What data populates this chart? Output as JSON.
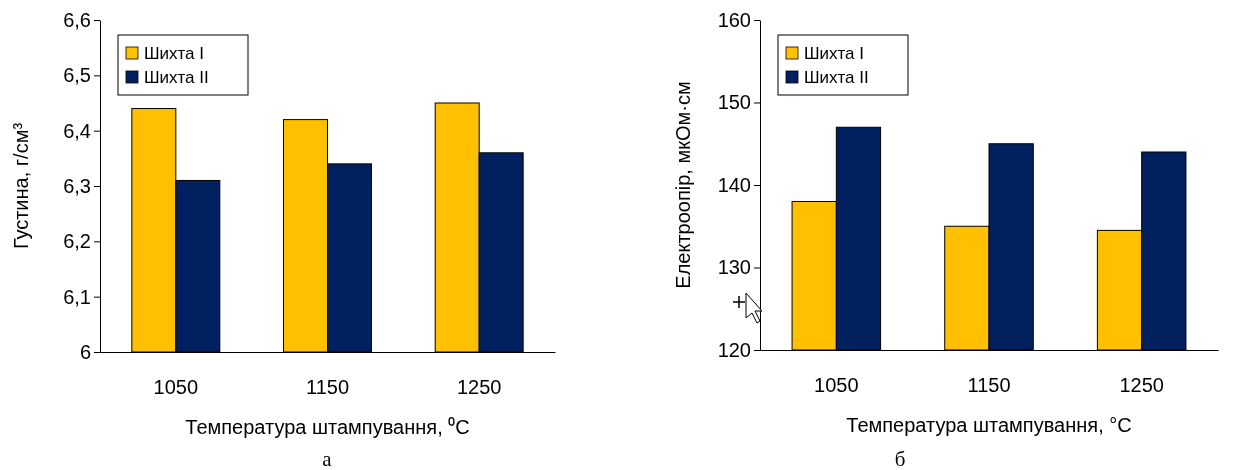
{
  "chart_data": [
    {
      "type": "bar",
      "categories": [
        "1050",
        "1150",
        "1250"
      ],
      "xlabel": "Температура штампування, ⁰C",
      "ylabel": "Густина, г/см³",
      "ylim": [
        6,
        6.6
      ],
      "yticks": [
        6,
        {
          "value": 6.1,
          "label": "6,1"
        },
        {
          "value": 6.2,
          "label": "6,2"
        },
        {
          "value": 6.3,
          "label": "6,3"
        },
        {
          "value": 6.4,
          "label": "6,4"
        },
        {
          "value": 6.5,
          "label": "6,5"
        },
        {
          "value": 6.6,
          "label": "6,6"
        }
      ],
      "legend": "top left",
      "annotations": [
        "а"
      ],
      "series": [
        {
          "name": "Шихта I",
          "color": "#ffc000",
          "values": [
            6.44,
            6.42,
            6.45
          ]
        },
        {
          "name": "Шихта II",
          "color": "#002060",
          "values": [
            6.31,
            6.34,
            6.36
          ]
        }
      ]
    },
    {
      "type": "bar",
      "categories": [
        "1050",
        "1150",
        "1250"
      ],
      "xlabel": "Температура штампування, °C",
      "ylabel": "Електроопір, мкОм·см",
      "ylim": [
        120,
        160
      ],
      "yticks": [
        120,
        130,
        140,
        150,
        160
      ],
      "legend": "top left",
      "annotations": [
        "б"
      ],
      "series": [
        {
          "name": "Шихта I",
          "color": "#ffc000",
          "values": [
            138,
            135,
            134.5
          ]
        },
        {
          "name": "Шихта II",
          "color": "#002060",
          "values": [
            147,
            145,
            144
          ]
        }
      ]
    }
  ]
}
